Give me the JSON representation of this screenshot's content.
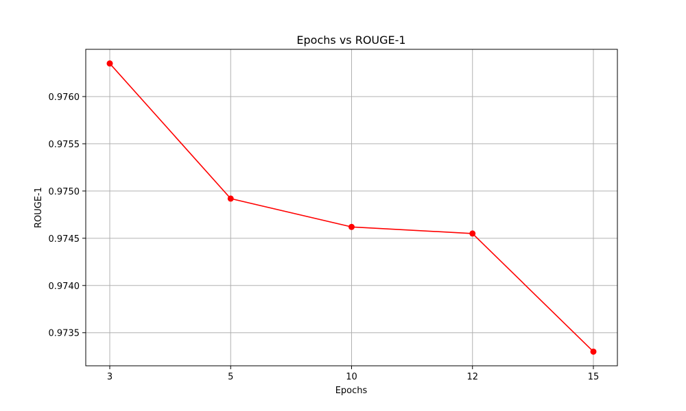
{
  "chart_data": {
    "type": "line",
    "title": "Epochs vs ROUGE-1",
    "xlabel": "Epochs",
    "ylabel": "ROUGE-1",
    "categories": [
      "3",
      "5",
      "10",
      "12",
      "15"
    ],
    "series": [
      {
        "values": [
          0.97635,
          0.97492,
          0.97462,
          0.97455,
          0.9733
        ]
      }
    ],
    "yticks": [
      "0.9735",
      "0.9740",
      "0.9745",
      "0.9750",
      "0.9755",
      "0.9760"
    ],
    "ylim": [
      0.97315,
      0.9765
    ],
    "grid": true,
    "line_color": "#ff0000",
    "marker": "circle"
  }
}
